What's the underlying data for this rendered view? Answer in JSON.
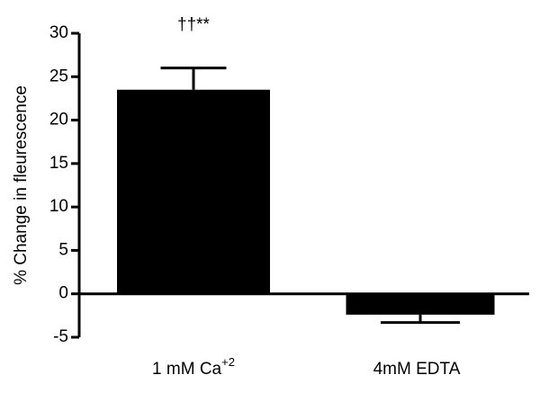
{
  "chart_data": {
    "type": "bar",
    "y_label": "% Change in fleurescence",
    "annotation": "††**",
    "categories": [
      "1 mM  Ca+2",
      "4mM EDTA"
    ],
    "values": [
      23.5,
      -2.4
    ],
    "errors": [
      2.5,
      0.9
    ],
    "color": "#000000",
    "ylim": [
      -5,
      30
    ],
    "yticks": [
      -5,
      0,
      5,
      10,
      15,
      20,
      25,
      30
    ],
    "grid": false
  }
}
